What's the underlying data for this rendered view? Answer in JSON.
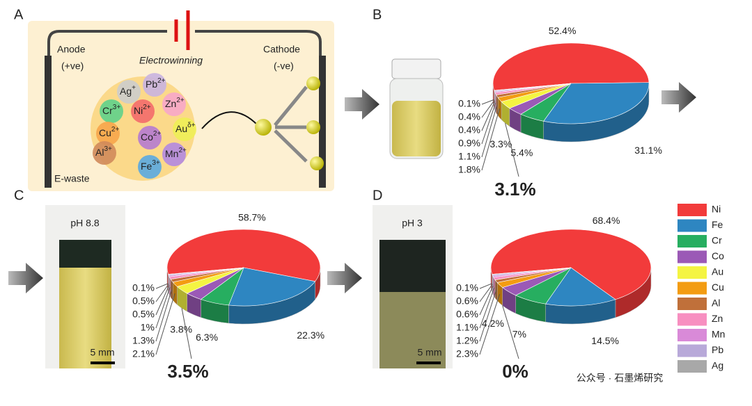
{
  "panel_labels": [
    "A",
    "B",
    "C",
    "D"
  ],
  "schematic": {
    "anode": "Anode",
    "anode_sign": "(+ve)",
    "cathode": "Cathode",
    "cathode_sign": "(-ve)",
    "process": "Electrowinning",
    "source": "E-waste",
    "ions": [
      {
        "symbol": "Ag",
        "charge": "+"
      },
      {
        "symbol": "Pb",
        "charge": "2+"
      },
      {
        "symbol": "Cr",
        "charge": "3+"
      },
      {
        "symbol": "Ni",
        "charge": "2+"
      },
      {
        "symbol": "Zn",
        "charge": "2+"
      },
      {
        "symbol": "Cu",
        "charge": "2+"
      },
      {
        "symbol": "Co",
        "charge": "2+"
      },
      {
        "symbol": "Au",
        "charge": "δ+"
      },
      {
        "symbol": "Al",
        "charge": "3+"
      },
      {
        "symbol": "Mn",
        "charge": "2+"
      },
      {
        "symbol": "Fe",
        "charge": "3+"
      }
    ]
  },
  "photos": [
    {
      "label": "pH 8.8",
      "scale": "5 mm"
    },
    {
      "label": "pH 3",
      "scale": "5 mm"
    }
  ],
  "watermark": "公众号 · 石墨烯研究",
  "chart_data": [
    {
      "type": "pie",
      "categories": [
        "Ni",
        "Fe",
        "Cr",
        "Co",
        "Au",
        "Cu",
        "Al",
        "Zn",
        "Mn",
        "Pb",
        "Ag"
      ],
      "values": [
        52.4,
        31.1,
        5.4,
        3.3,
        3.1,
        1.8,
        1.1,
        0.9,
        0.4,
        0.4,
        0.1
      ],
      "value_labels": [
        "52.4%",
        "31.1%",
        "5.4%",
        "3.3%",
        "3.1%",
        "1.8%",
        "1.1%",
        "0.9%",
        "0.4%",
        "0.4%",
        "0.1%"
      ],
      "colors": [
        "#f23b3b",
        "#2e86c1",
        "#27ae60",
        "#9b59b6",
        "#f4f442",
        "#f39c12",
        "#c0703a",
        "#f78fc0",
        "#d98ad8",
        "#b8a9d9",
        "#a8a8a8"
      ]
    },
    {
      "type": "pie",
      "categories": [
        "Ni",
        "Fe",
        "Cr",
        "Co",
        "Au",
        "Cu",
        "Al",
        "Zn",
        "Mn",
        "Pb",
        "Ag"
      ],
      "values": [
        58.7,
        22.3,
        6.3,
        3.8,
        3.5,
        2.1,
        1.3,
        1,
        0.5,
        0.5,
        0.1
      ],
      "value_labels": [
        "58.7%",
        "22.3%",
        "6.3%",
        "3.8%",
        "3.5%",
        "2.1%",
        "1.3%",
        "1%",
        "0.5%",
        "0.5%",
        "0.1%"
      ],
      "colors": [
        "#f23b3b",
        "#2e86c1",
        "#27ae60",
        "#9b59b6",
        "#f4f442",
        "#f39c12",
        "#c0703a",
        "#f78fc0",
        "#d98ad8",
        "#b8a9d9",
        "#a8a8a8"
      ]
    },
    {
      "type": "pie",
      "categories": [
        "Ni",
        "Fe",
        "Cr",
        "Co",
        "Au",
        "Cu",
        "Al",
        "Zn",
        "Mn",
        "Pb",
        "Ag"
      ],
      "values": [
        68.4,
        14.5,
        7,
        4.2,
        0,
        2.3,
        1.2,
        1.1,
        0.6,
        0.6,
        0.1
      ],
      "value_labels": [
        "68.4%",
        "14.5%",
        "7%",
        "4.2%",
        "0%",
        "2.3%",
        "1.2%",
        "1.1%",
        "0.6%",
        "0.6%",
        "0.1%"
      ],
      "colors": [
        "#f23b3b",
        "#2e86c1",
        "#27ae60",
        "#9b59b6",
        "#f4f442",
        "#f39c12",
        "#c0703a",
        "#f78fc0",
        "#d98ad8",
        "#b8a9d9",
        "#a8a8a8"
      ],
      "legend": true
    }
  ]
}
